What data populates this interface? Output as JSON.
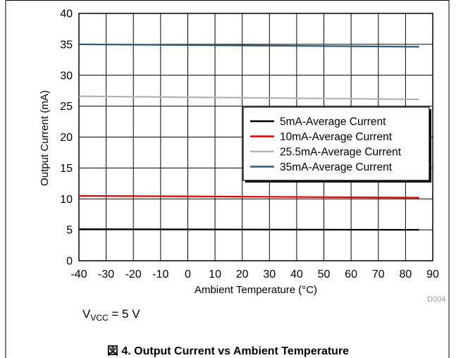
{
  "chart_data": {
    "type": "line",
    "xlabel": "Ambient Temperature (°C)",
    "ylabel": "Output Current (mA)",
    "xlim": [
      -40,
      90
    ],
    "ylim": [
      0,
      40
    ],
    "xticks": [
      "-40",
      "-30",
      "-20",
      "-10",
      "0",
      "10",
      "20",
      "30",
      "40",
      "50",
      "60",
      "70",
      "80",
      "90"
    ],
    "yticks": [
      "0",
      "5",
      "10",
      "15",
      "20",
      "25",
      "30",
      "35",
      "40"
    ],
    "grid": true,
    "legend_position": "center-right",
    "series": [
      {
        "name": "5mA-Average Current",
        "color": "#000000",
        "x": [
          -40,
          85
        ],
        "y": [
          5.1,
          5.0
        ]
      },
      {
        "name": "10mA-Average Current",
        "color": "#e60000",
        "x": [
          -40,
          85
        ],
        "y": [
          10.5,
          10.2
        ]
      },
      {
        "name": "25.5mA-Average Current",
        "color": "#b3b3b3",
        "x": [
          -40,
          85
        ],
        "y": [
          26.6,
          26.1
        ]
      },
      {
        "name": "35mA-Average Current",
        "color": "#2e5b7a",
        "x": [
          -40,
          85
        ],
        "y": [
          35.0,
          34.6
        ]
      }
    ],
    "code": "D004"
  },
  "condition": {
    "prefix": "V",
    "subscript": "VCC",
    "suffix": " = 5 V"
  },
  "caption": "図 4. Output Current vs Ambient Temperature"
}
